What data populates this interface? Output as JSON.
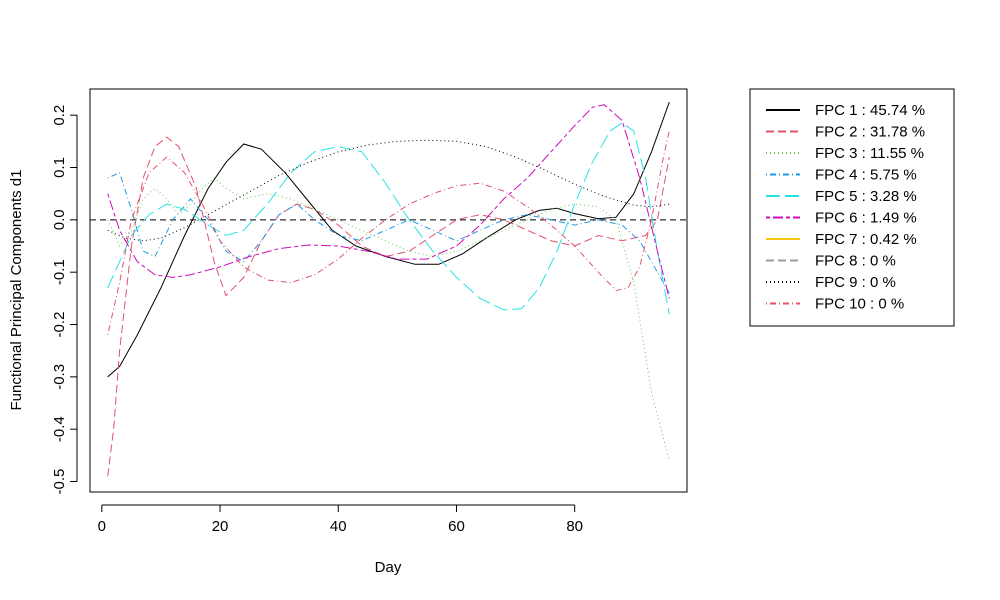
{
  "chart_data": {
    "type": "line",
    "title": "",
    "xlabel": "Day",
    "ylabel": "Functional Principal Components d1",
    "xlim": [
      -2,
      99
    ],
    "ylim": [
      -0.52,
      0.25
    ],
    "x_ticks": [
      0,
      20,
      40,
      60,
      80
    ],
    "x_tick_labels": [
      "0",
      "20",
      "40",
      "60",
      "80"
    ],
    "y_ticks": [
      -0.5,
      -0.4,
      -0.3,
      -0.2,
      -0.1,
      0.0,
      0.1,
      0.2
    ],
    "y_tick_labels": [
      "-0.5",
      "-0.4",
      "-0.3",
      "-0.2",
      "-0.1",
      "0.0",
      "0.1",
      "0.2"
    ],
    "reference_line_y": 0,
    "legend_position": "right",
    "series": [
      {
        "name": "FPC 1 : 45.74 %",
        "color": "#000000",
        "dash": "solid",
        "points": [
          [
            1,
            -0.3
          ],
          [
            3,
            -0.28
          ],
          [
            6,
            -0.22
          ],
          [
            10,
            -0.13
          ],
          [
            14,
            -0.03
          ],
          [
            18,
            0.06
          ],
          [
            21,
            0.11
          ],
          [
            24,
            0.145
          ],
          [
            27,
            0.135
          ],
          [
            31,
            0.09
          ],
          [
            35,
            0.035
          ],
          [
            39,
            -0.02
          ],
          [
            43,
            -0.05
          ],
          [
            48,
            -0.07
          ],
          [
            53,
            -0.085
          ],
          [
            57,
            -0.085
          ],
          [
            61,
            -0.065
          ],
          [
            65,
            -0.035
          ],
          [
            70,
            0.0
          ],
          [
            74,
            0.018
          ],
          [
            77,
            0.022
          ],
          [
            80,
            0.012
          ],
          [
            84,
            0.002
          ],
          [
            87,
            0.005
          ],
          [
            90,
            0.05
          ],
          [
            93,
            0.13
          ],
          [
            96,
            0.225
          ]
        ]
      },
      {
        "name": "FPC 2 : 31.78 %",
        "color": "#DF536B",
        "dash": "dashed",
        "points": [
          [
            1,
            -0.49
          ],
          [
            2,
            -0.4
          ],
          [
            3,
            -0.25
          ],
          [
            5,
            -0.05
          ],
          [
            7,
            0.08
          ],
          [
            9,
            0.14
          ],
          [
            11,
            0.158
          ],
          [
            13,
            0.14
          ],
          [
            16,
            0.06
          ],
          [
            19,
            -0.08
          ],
          [
            21,
            -0.145
          ],
          [
            24,
            -0.11
          ],
          [
            27,
            -0.04
          ],
          [
            30,
            0.01
          ],
          [
            33,
            0.03
          ],
          [
            36,
            0.02
          ],
          [
            40,
            -0.01
          ],
          [
            44,
            -0.05
          ],
          [
            48,
            -0.07
          ],
          [
            52,
            -0.06
          ],
          [
            56,
            -0.03
          ],
          [
            60,
            0.0
          ],
          [
            64,
            0.01
          ],
          [
            68,
            0.0
          ],
          [
            72,
            -0.02
          ],
          [
            76,
            -0.04
          ],
          [
            80,
            -0.05
          ],
          [
            84,
            -0.03
          ],
          [
            88,
            -0.04
          ],
          [
            92,
            -0.03
          ],
          [
            94,
            0.0
          ],
          [
            96,
            0.12
          ]
        ]
      },
      {
        "name": "FPC 3 : 11.55 %",
        "color": "#61D04F",
        "dash": "dotted",
        "points": [
          [
            1,
            0.0
          ],
          [
            3,
            -0.05
          ],
          [
            5,
            -0.02
          ],
          [
            7,
            0.04
          ],
          [
            9,
            0.06
          ],
          [
            11,
            0.04
          ],
          [
            13,
            0.01
          ],
          [
            15,
            0.03
          ],
          [
            17,
            0.06
          ],
          [
            19,
            0.08
          ],
          [
            21,
            0.06
          ],
          [
            24,
            0.04
          ],
          [
            28,
            0.05
          ],
          [
            32,
            0.04
          ],
          [
            36,
            0.02
          ],
          [
            40,
            0.0
          ],
          [
            44,
            -0.02
          ],
          [
            48,
            -0.04
          ],
          [
            52,
            -0.06
          ],
          [
            56,
            -0.07
          ],
          [
            60,
            -0.06
          ],
          [
            64,
            -0.04
          ],
          [
            68,
            -0.02
          ],
          [
            72,
            0.0
          ],
          [
            76,
            0.02
          ],
          [
            80,
            0.03
          ],
          [
            84,
            0.025
          ],
          [
            87,
            0.0
          ],
          [
            90,
            -0.12
          ],
          [
            93,
            -0.33
          ],
          [
            96,
            -0.46
          ]
        ]
      },
      {
        "name": "FPC 4 : 5.75 %",
        "color": "#2297E6",
        "dash": "dotdash",
        "points": [
          [
            1,
            0.08
          ],
          [
            3,
            0.09
          ],
          [
            5,
            0.02
          ],
          [
            7,
            -0.06
          ],
          [
            9,
            -0.07
          ],
          [
            12,
            0.0
          ],
          [
            15,
            0.04
          ],
          [
            18,
            0.0
          ],
          [
            21,
            -0.06
          ],
          [
            24,
            -0.08
          ],
          [
            27,
            -0.04
          ],
          [
            30,
            0.01
          ],
          [
            33,
            0.03
          ],
          [
            36,
            0.0
          ],
          [
            40,
            -0.03
          ],
          [
            44,
            -0.04
          ],
          [
            48,
            -0.02
          ],
          [
            52,
            0.0
          ],
          [
            56,
            -0.02
          ],
          [
            60,
            -0.04
          ],
          [
            64,
            -0.02
          ],
          [
            68,
            0.0
          ],
          [
            72,
            0.01
          ],
          [
            76,
            0.0
          ],
          [
            80,
            -0.01
          ],
          [
            84,
            0.0
          ],
          [
            88,
            -0.01
          ],
          [
            91,
            -0.04
          ],
          [
            94,
            -0.1
          ],
          [
            96,
            -0.14
          ]
        ]
      },
      {
        "name": "FPC 5 : 3.28 %",
        "color": "#28E2E5",
        "dash": "longdash",
        "points": [
          [
            1,
            -0.13
          ],
          [
            3,
            -0.08
          ],
          [
            5,
            -0.03
          ],
          [
            8,
            0.01
          ],
          [
            11,
            0.03
          ],
          [
            14,
            0.02
          ],
          [
            18,
            -0.01
          ],
          [
            21,
            -0.03
          ],
          [
            24,
            -0.02
          ],
          [
            28,
            0.03
          ],
          [
            32,
            0.09
          ],
          [
            36,
            0.13
          ],
          [
            40,
            0.14
          ],
          [
            44,
            0.13
          ],
          [
            48,
            0.07
          ],
          [
            52,
            0.0
          ],
          [
            56,
            -0.06
          ],
          [
            60,
            -0.11
          ],
          [
            64,
            -0.15
          ],
          [
            68,
            -0.172
          ],
          [
            71,
            -0.17
          ],
          [
            74,
            -0.13
          ],
          [
            77,
            -0.06
          ],
          [
            80,
            0.03
          ],
          [
            83,
            0.11
          ],
          [
            86,
            0.17
          ],
          [
            88,
            0.185
          ],
          [
            90,
            0.17
          ],
          [
            92,
            0.08
          ],
          [
            94,
            -0.06
          ],
          [
            96,
            -0.18
          ]
        ]
      },
      {
        "name": "FPC 6 : 1.49 %",
        "color": "#CD0BBC",
        "dash": "twodash",
        "points": [
          [
            1,
            0.05
          ],
          [
            3,
            -0.02
          ],
          [
            6,
            -0.08
          ],
          [
            9,
            -0.105
          ],
          [
            12,
            -0.11
          ],
          [
            15,
            -0.105
          ],
          [
            20,
            -0.09
          ],
          [
            25,
            -0.07
          ],
          [
            30,
            -0.055
          ],
          [
            35,
            -0.048
          ],
          [
            40,
            -0.05
          ],
          [
            45,
            -0.06
          ],
          [
            50,
            -0.075
          ],
          [
            55,
            -0.075
          ],
          [
            60,
            -0.05
          ],
          [
            64,
            -0.01
          ],
          [
            68,
            0.04
          ],
          [
            72,
            0.08
          ],
          [
            76,
            0.13
          ],
          [
            80,
            0.18
          ],
          [
            83,
            0.215
          ],
          [
            85,
            0.22
          ],
          [
            88,
            0.19
          ],
          [
            91,
            0.08
          ],
          [
            94,
            -0.06
          ],
          [
            96,
            -0.15
          ]
        ]
      },
      {
        "name": "FPC 7 : 0.42 %",
        "color": "#F5C710",
        "dash": "solid",
        "points": []
      },
      {
        "name": "FPC 8 : 0 %",
        "color": "#9E9E9E",
        "dash": "dashed",
        "points": []
      },
      {
        "name": "FPC 9 : 0 %",
        "color": "#000000",
        "dash": "dotted",
        "points": [
          [
            1,
            -0.02
          ],
          [
            4,
            -0.035
          ],
          [
            7,
            -0.04
          ],
          [
            10,
            -0.035
          ],
          [
            14,
            -0.015
          ],
          [
            18,
            0.01
          ],
          [
            22,
            0.035
          ],
          [
            26,
            0.06
          ],
          [
            30,
            0.085
          ],
          [
            35,
            0.11
          ],
          [
            40,
            0.13
          ],
          [
            45,
            0.143
          ],
          [
            50,
            0.15
          ],
          [
            55,
            0.152
          ],
          [
            60,
            0.15
          ],
          [
            65,
            0.14
          ],
          [
            70,
            0.12
          ],
          [
            75,
            0.095
          ],
          [
            80,
            0.068
          ],
          [
            85,
            0.045
          ],
          [
            90,
            0.028
          ],
          [
            93,
            0.025
          ],
          [
            96,
            0.03
          ]
        ]
      },
      {
        "name": "FPC 10 : 0 %",
        "color": "#DF536B",
        "dash": "dotdash",
        "points": [
          [
            1,
            -0.22
          ],
          [
            3,
            -0.12
          ],
          [
            5,
            0.0
          ],
          [
            8,
            0.09
          ],
          [
            11,
            0.12
          ],
          [
            14,
            0.09
          ],
          [
            17,
            0.03
          ],
          [
            20,
            -0.04
          ],
          [
            24,
            -0.09
          ],
          [
            28,
            -0.115
          ],
          [
            32,
            -0.12
          ],
          [
            36,
            -0.105
          ],
          [
            40,
            -0.075
          ],
          [
            44,
            -0.035
          ],
          [
            48,
            0.0
          ],
          [
            52,
            0.03
          ],
          [
            56,
            0.05
          ],
          [
            60,
            0.065
          ],
          [
            64,
            0.07
          ],
          [
            68,
            0.055
          ],
          [
            72,
            0.025
          ],
          [
            76,
            -0.01
          ],
          [
            80,
            -0.05
          ],
          [
            84,
            -0.1
          ],
          [
            87,
            -0.135
          ],
          [
            89,
            -0.13
          ],
          [
            91,
            -0.09
          ],
          [
            93,
            0.0
          ],
          [
            95,
            0.12
          ],
          [
            96,
            0.17
          ]
        ]
      }
    ]
  }
}
